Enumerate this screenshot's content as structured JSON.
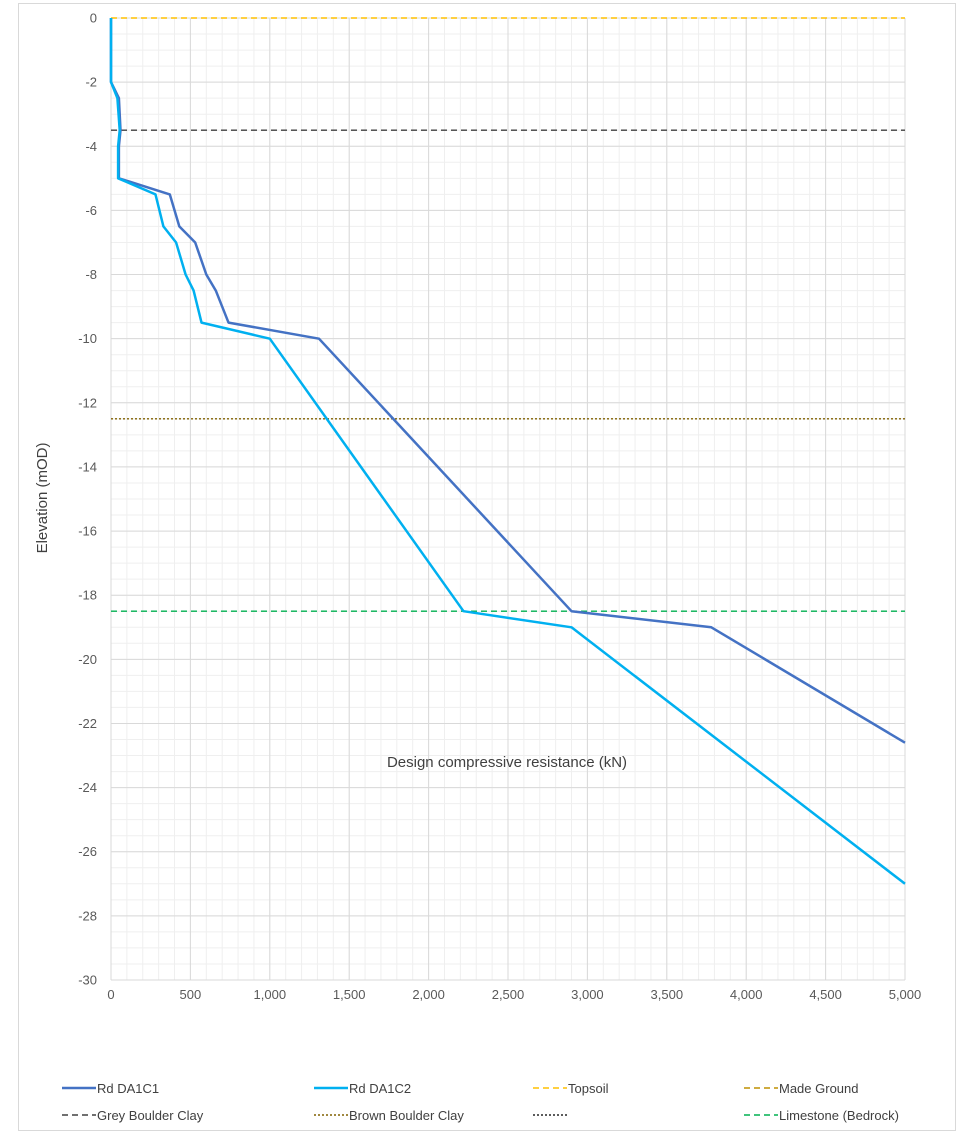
{
  "chart_data": {
    "type": "line",
    "title": "",
    "xlabel": "Design compressive resistance (kN)",
    "ylabel": "Elevation (mOD)",
    "xlim": [
      0,
      5000
    ],
    "ylim": [
      -30,
      0
    ],
    "x_major_step": 500,
    "x_minor_step": 100,
    "y_major_step": 2,
    "y_minor_step": 0.5,
    "grid": true,
    "legend_position": "bottom",
    "x_tick_labels": [
      "0",
      "500",
      "1,000",
      "1,500",
      "2,000",
      "2,500",
      "3,000",
      "3,500",
      "4,000",
      "4,500",
      "5,000"
    ],
    "y_tick_labels": [
      "0",
      "-2",
      "-4",
      "-6",
      "-8",
      "-10",
      "-12",
      "-14",
      "-16",
      "-18",
      "-20",
      "-22",
      "-24",
      "-26",
      "-28",
      "-30"
    ],
    "series": [
      {
        "name": "Rd DA1C1",
        "color": "#4472c4",
        "style": "solid",
        "points": [
          [
            0,
            0
          ],
          [
            0,
            -2
          ],
          [
            50,
            -2.5
          ],
          [
            60,
            -3.5
          ],
          [
            50,
            -4
          ],
          [
            50,
            -5
          ],
          [
            370,
            -5.5
          ],
          [
            430,
            -6.5
          ],
          [
            530,
            -7
          ],
          [
            600,
            -8
          ],
          [
            660,
            -8.5
          ],
          [
            740,
            -9.5
          ],
          [
            1310,
            -10
          ],
          [
            2900,
            -18.5
          ],
          [
            3780,
            -19
          ],
          [
            5000,
            -22.6
          ]
        ]
      },
      {
        "name": "Rd DA1C2",
        "color": "#00b0f0",
        "style": "solid",
        "points": [
          [
            0,
            0
          ],
          [
            0,
            -2
          ],
          [
            40,
            -2.5
          ],
          [
            55,
            -3.5
          ],
          [
            45,
            -4
          ],
          [
            45,
            -5
          ],
          [
            280,
            -5.5
          ],
          [
            330,
            -6.5
          ],
          [
            410,
            -7
          ],
          [
            470,
            -8
          ],
          [
            520,
            -8.5
          ],
          [
            570,
            -9.5
          ],
          [
            1000,
            -10
          ],
          [
            2220,
            -18.5
          ],
          [
            2900,
            -19
          ],
          [
            5000,
            -27
          ]
        ]
      },
      {
        "name": "Topsoil",
        "color": "#ffc000",
        "style": "dash",
        "y": 0
      },
      {
        "name": "Made Ground",
        "color": "#bf9000",
        "style": "dash",
        "y": null
      },
      {
        "name": "Grey Boulder Clay",
        "color": "#404040",
        "style": "dash",
        "y": -3.5
      },
      {
        "name": "Brown Boulder Clay",
        "color": "#806000",
        "style": "dot",
        "y": -12.5
      },
      {
        "name": "",
        "color": "#262626",
        "style": "dot",
        "y": null
      },
      {
        "name": "Limestone (Bedrock)",
        "color": "#00b050",
        "style": "dash",
        "y": -18.5
      }
    ]
  }
}
